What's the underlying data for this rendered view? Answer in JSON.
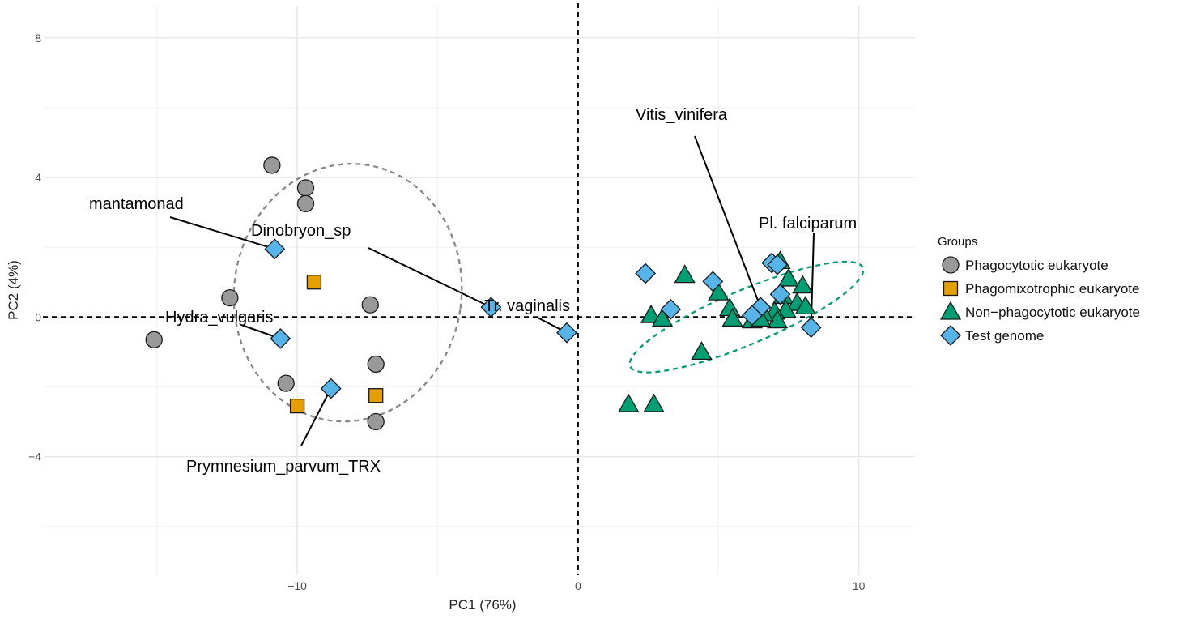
{
  "chart_data": {
    "type": "scatter",
    "xlabel": "PC1 (76%)",
    "ylabel": "PC2 (4%)",
    "xlim": [
      -19,
      12
    ],
    "ylim": [
      -7.4,
      8.9
    ],
    "x_ticks": [
      -10,
      0,
      10
    ],
    "y_ticks": [
      -4,
      0,
      4,
      8
    ],
    "x_tick_labels": [
      "−10",
      "0",
      "10"
    ],
    "y_tick_labels": [
      "−4",
      "0",
      "4",
      "8"
    ],
    "grid": true,
    "reference_lines": {
      "x": 0,
      "y": 0,
      "style": "dashed"
    },
    "legend": {
      "title": "Groups",
      "position": "right",
      "entries": [
        {
          "label": "Phagocytotic eukaryote",
          "shape": "circle",
          "color": "#999999"
        },
        {
          "label": "Phagomixotrophic eukaryote",
          "shape": "square",
          "color": "#E69F00"
        },
        {
          "label": "Non−phagocytotic eukaryote",
          "shape": "triangle",
          "color": "#009E73"
        },
        {
          "label": "Test genome",
          "shape": "diamond",
          "color": "#56B4E9"
        }
      ]
    },
    "series": [
      {
        "name": "Phagocytotic eukaryote",
        "shape": "circle",
        "color": "#999999",
        "points": [
          {
            "x": -10.9,
            "y": 4.35
          },
          {
            "x": -9.7,
            "y": 3.7
          },
          {
            "x": -9.7,
            "y": 3.25
          },
          {
            "x": -12.4,
            "y": 0.55
          },
          {
            "x": -7.4,
            "y": 0.35
          },
          {
            "x": -15.1,
            "y": -0.65
          },
          {
            "x": -7.2,
            "y": -1.35
          },
          {
            "x": -10.4,
            "y": -1.9
          },
          {
            "x": -7.2,
            "y": -3.0
          }
        ]
      },
      {
        "name": "Phagomixotrophic eukaryote",
        "shape": "square",
        "color": "#E69F00",
        "points": [
          {
            "x": -9.4,
            "y": 1.0
          },
          {
            "x": -7.2,
            "y": -2.25
          },
          {
            "x": -10.0,
            "y": -2.55
          }
        ]
      },
      {
        "name": "Non−phagocytotic eukaryote",
        "shape": "triangle",
        "color": "#009E73",
        "points": [
          {
            "x": 3.8,
            "y": 1.2
          },
          {
            "x": 5.0,
            "y": 0.7
          },
          {
            "x": 7.2,
            "y": 1.6
          },
          {
            "x": 7.5,
            "y": 1.1
          },
          {
            "x": 7.3,
            "y": 0.6
          },
          {
            "x": 7.8,
            "y": 0.4
          },
          {
            "x": 8.0,
            "y": 0.9
          },
          {
            "x": 8.1,
            "y": 0.3
          },
          {
            "x": 7.4,
            "y": 0.2
          },
          {
            "x": 7.0,
            "y": 0.15
          },
          {
            "x": 7.1,
            "y": -0.1
          },
          {
            "x": 6.6,
            "y": 0.1
          },
          {
            "x": 5.4,
            "y": 0.25
          },
          {
            "x": 5.5,
            "y": -0.05
          },
          {
            "x": 6.2,
            "y": -0.1
          },
          {
            "x": 6.5,
            "y": -0.05
          },
          {
            "x": 2.6,
            "y": 0.05
          },
          {
            "x": 3.0,
            "y": -0.05
          },
          {
            "x": 4.4,
            "y": -1.0
          },
          {
            "x": 1.8,
            "y": -2.5
          },
          {
            "x": 2.7,
            "y": -2.5
          }
        ]
      },
      {
        "name": "Test genome",
        "shape": "diamond",
        "color": "#56B4E9",
        "points": [
          {
            "x": -10.8,
            "y": 1.95
          },
          {
            "x": -3.1,
            "y": 0.28
          },
          {
            "x": -10.6,
            "y": -0.62
          },
          {
            "x": -8.8,
            "y": -2.05
          },
          {
            "x": -0.4,
            "y": -0.45
          },
          {
            "x": 2.4,
            "y": 1.25
          },
          {
            "x": 3.3,
            "y": 0.22
          },
          {
            "x": 4.8,
            "y": 1.02
          },
          {
            "x": 6.9,
            "y": 1.55
          },
          {
            "x": 7.1,
            "y": 1.5
          },
          {
            "x": 7.2,
            "y": 0.65
          },
          {
            "x": 6.5,
            "y": 0.28
          },
          {
            "x": 6.2,
            "y": 0.05
          },
          {
            "x": 8.3,
            "y": -0.3
          }
        ]
      }
    ],
    "ellipses": [
      {
        "group": "Phagocytotic eukaryote",
        "color": "#888888",
        "style": "dashed",
        "cx": -8.2,
        "cy": 0.7,
        "rx": 8.1,
        "ry": 7.4,
        "angle_deg": -8
      },
      {
        "group": "Non−phagocytotic eukaryote",
        "color": "#009E73",
        "style": "dashed",
        "cx": 6.0,
        "cy": 0.0,
        "rx": 9.0,
        "ry": 1.55,
        "angle_deg": 23
      }
    ],
    "annotations": [
      {
        "text": "mantamonad",
        "point": {
          "x": -10.8,
          "y": 1.95
        }
      },
      {
        "text": "Dinobryon_sp",
        "point": {
          "x": -3.1,
          "y": 0.28
        }
      },
      {
        "text": "Hydra_vulgaris",
        "point": {
          "x": -10.6,
          "y": -0.62
        }
      },
      {
        "text": "Prymnesium_parvum_TRX",
        "point": {
          "x": -8.8,
          "y": -2.05
        }
      },
      {
        "text": "Tr. vaginalis",
        "point": {
          "x": -0.4,
          "y": -0.45
        }
      },
      {
        "text": "Vitis_vinifera",
        "point": {
          "x": 6.5,
          "y": 0.28
        }
      },
      {
        "text": "Pl. falciparum",
        "point": {
          "x": 8.3,
          "y": -0.3
        }
      }
    ]
  }
}
